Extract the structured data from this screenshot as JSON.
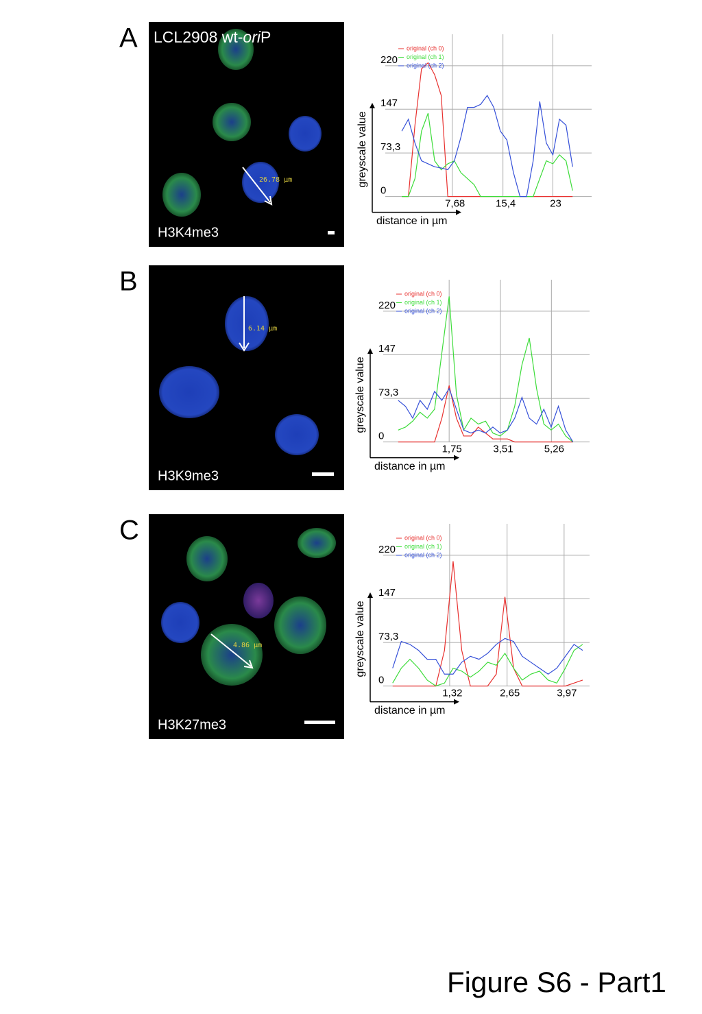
{
  "figure_label": "Figure S6 - Part1",
  "panels": [
    {
      "letter": "A",
      "title_parts": [
        "LCL2908 wt-",
        "ori",
        "P"
      ],
      "mark": "H3K4me3",
      "measure": "26.78 µm"
    },
    {
      "letter": "B",
      "mark": "H3K9me3",
      "measure": "6.14 µm"
    },
    {
      "letter": "C",
      "mark": "H3K27me3",
      "measure": "4.86 µm"
    }
  ],
  "chart_data": [
    {
      "type": "line",
      "ylabel": "greyscale value",
      "xlabel": "distance in µm",
      "ylim": [
        -27,
        273
      ],
      "yticks": [
        0,
        {
          "value": 73.3,
          "label": "73,3"
        },
        147,
        220
      ],
      "xlim": [
        -4.5,
        28.9
      ],
      "xticks": [
        {
          "value": 7.68,
          "label": "7,68"
        },
        {
          "value": 15.4,
          "label": "15,4"
        },
        {
          "value": 23,
          "label": "23"
        }
      ],
      "grid": true,
      "x": [
        0,
        1,
        2,
        3,
        4,
        5,
        6,
        7,
        8,
        9,
        10,
        11,
        12,
        13,
        14,
        15,
        16,
        17,
        18,
        19,
        20,
        21,
        22,
        23,
        24,
        25,
        26
      ],
      "series": [
        {
          "name": "original (ch 0)",
          "color": "#e8312f",
          "values": [
            0,
            0,
            120,
            215,
            225,
            205,
            170,
            0,
            0,
            0,
            0,
            0,
            0,
            0,
            0,
            0,
            0,
            0,
            0,
            0,
            0,
            0,
            0,
            0,
            0,
            0,
            0
          ]
        },
        {
          "name": "original (ch 1)",
          "color": "#3ddc3a",
          "values": [
            0,
            0,
            30,
            110,
            140,
            60,
            45,
            55,
            60,
            40,
            30,
            20,
            0,
            0,
            0,
            0,
            0,
            0,
            0,
            0,
            0,
            30,
            60,
            55,
            70,
            60,
            10
          ]
        },
        {
          "name": "original (ch 2)",
          "color": "#3550d8",
          "values": [
            110,
            130,
            90,
            60,
            55,
            50,
            48,
            45,
            60,
            100,
            150,
            150,
            155,
            170,
            150,
            110,
            95,
            40,
            0,
            0,
            60,
            160,
            90,
            70,
            130,
            120,
            50
          ]
        }
      ]
    },
    {
      "type": "line",
      "ylabel": "greyscale value",
      "xlabel": "distance in µm",
      "ylim": [
        -27,
        273
      ],
      "yticks": [
        0,
        {
          "value": 73.3,
          "label": "73,3"
        },
        147,
        220
      ],
      "xlim": [
        -0.96,
        6.57
      ],
      "xticks": [
        {
          "value": 1.75,
          "label": "1,75"
        },
        {
          "value": 3.51,
          "label": "3,51"
        },
        {
          "value": 5.26,
          "label": "5,26"
        }
      ],
      "grid": true,
      "x": [
        0,
        0.25,
        0.5,
        0.75,
        1,
        1.25,
        1.5,
        1.75,
        2,
        2.25,
        2.5,
        2.75,
        3,
        3.25,
        3.5,
        3.75,
        4,
        4.25,
        4.5,
        4.75,
        5,
        5.25,
        5.5,
        5.75,
        6
      ],
      "series": [
        {
          "name": "original (ch 0)",
          "color": "#e8312f",
          "values": [
            0,
            0,
            0,
            0,
            0,
            0,
            40,
            95,
            40,
            10,
            10,
            25,
            15,
            5,
            5,
            5,
            0,
            0,
            0,
            0,
            0,
            0,
            0,
            0,
            0
          ]
        },
        {
          "name": "original (ch 1)",
          "color": "#3ddc3a",
          "values": [
            20,
            25,
            35,
            50,
            40,
            55,
            150,
            245,
            80,
            20,
            40,
            30,
            35,
            15,
            10,
            20,
            60,
            130,
            175,
            90,
            30,
            20,
            30,
            10,
            0
          ]
        },
        {
          "name": "original (ch 2)",
          "color": "#3550d8",
          "values": [
            70,
            60,
            40,
            70,
            55,
            85,
            70,
            90,
            55,
            20,
            15,
            20,
            15,
            25,
            15,
            20,
            40,
            75,
            40,
            30,
            55,
            25,
            60,
            20,
            0
          ]
        }
      ]
    },
    {
      "type": "line",
      "ylabel": "greyscale value",
      "xlabel": "distance in µm",
      "ylim": [
        -27,
        273
      ],
      "yticks": [
        0,
        {
          "value": 73.3,
          "label": "73,3"
        },
        147,
        220
      ],
      "xlim": [
        -0.52,
        4.56
      ],
      "xticks": [
        {
          "value": 1.32,
          "label": "1,32"
        },
        {
          "value": 2.65,
          "label": "2,65"
        },
        {
          "value": 3.97,
          "label": "3,97"
        }
      ],
      "grid": true,
      "x": [
        0,
        0.2,
        0.4,
        0.6,
        0.8,
        1,
        1.2,
        1.4,
        1.6,
        1.8,
        2,
        2.2,
        2.4,
        2.6,
        2.8,
        3,
        3.2,
        3.4,
        3.6,
        3.8,
        4,
        4.2,
        4.4
      ],
      "series": [
        {
          "name": "original (ch 0)",
          "color": "#e8312f",
          "values": [
            0,
            0,
            0,
            0,
            0,
            0,
            60,
            210,
            60,
            0,
            0,
            0,
            20,
            150,
            30,
            0,
            0,
            0,
            0,
            0,
            0,
            5,
            10
          ]
        },
        {
          "name": "original (ch 1)",
          "color": "#3ddc3a",
          "values": [
            5,
            30,
            45,
            30,
            10,
            0,
            5,
            30,
            25,
            15,
            25,
            40,
            35,
            55,
            30,
            10,
            20,
            25,
            10,
            5,
            30,
            60,
            70
          ]
        },
        {
          "name": "original (ch 2)",
          "color": "#3550d8",
          "values": [
            30,
            75,
            70,
            60,
            45,
            45,
            20,
            20,
            40,
            50,
            45,
            55,
            70,
            80,
            75,
            50,
            40,
            30,
            20,
            30,
            50,
            70,
            60
          ]
        }
      ]
    }
  ]
}
